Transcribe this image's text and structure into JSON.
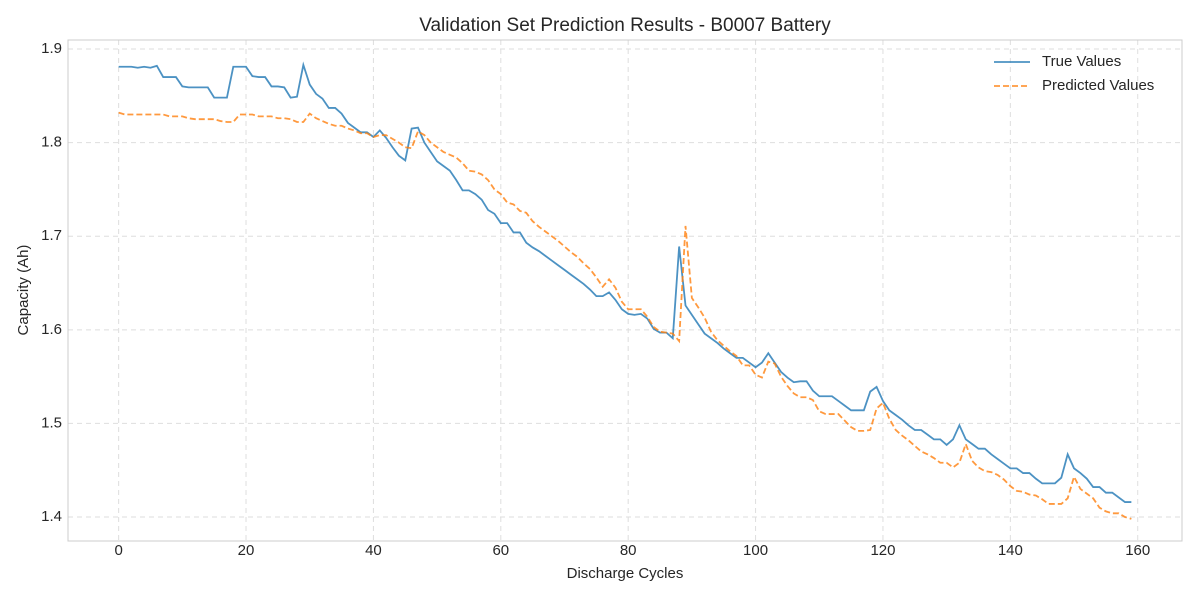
{
  "chart_data": {
    "type": "line",
    "title": "Validation Set Prediction Results - B0007 Battery",
    "x_label": "Discharge Cycles",
    "y_label": "Capacity (Ah)",
    "x": [
      0,
      1,
      2,
      3,
      4,
      5,
      6,
      7,
      8,
      9,
      10,
      11,
      12,
      13,
      14,
      15,
      16,
      17,
      18,
      19,
      20,
      21,
      22,
      23,
      24,
      25,
      26,
      27,
      28,
      29,
      30,
      31,
      32,
      33,
      34,
      35,
      36,
      37,
      38,
      39,
      40,
      41,
      42,
      43,
      44,
      45,
      46,
      47,
      48,
      49,
      50,
      51,
      52,
      53,
      54,
      55,
      56,
      57,
      58,
      59,
      60,
      61,
      62,
      63,
      64,
      65,
      66,
      67,
      68,
      69,
      70,
      71,
      72,
      73,
      74,
      75,
      76,
      77,
      78,
      79,
      80,
      81,
      82,
      83,
      84,
      85,
      86,
      87,
      88,
      89,
      90,
      91,
      92,
      93,
      94,
      95,
      96,
      97,
      98,
      99,
      100,
      101,
      102,
      103,
      104,
      105,
      106,
      107,
      108,
      109,
      110,
      111,
      112,
      113,
      114,
      115,
      116,
      117,
      118,
      119,
      120,
      121,
      122,
      123,
      124,
      125,
      126,
      127,
      128,
      129,
      130,
      131,
      132,
      133,
      134,
      135,
      136,
      137,
      138,
      139,
      140,
      141,
      142,
      143,
      144,
      145,
      146,
      147,
      148,
      149,
      150,
      151,
      152,
      153,
      154,
      155,
      156,
      157,
      158,
      159
    ],
    "series": [
      {
        "name": "True Values",
        "color": "#1f77b4",
        "linestyle": "solid",
        "values": [
          1.881,
          1.881,
          1.881,
          1.88,
          1.881,
          1.88,
          1.882,
          1.87,
          1.87,
          1.87,
          1.86,
          1.859,
          1.859,
          1.859,
          1.859,
          1.848,
          1.848,
          1.848,
          1.881,
          1.881,
          1.881,
          1.871,
          1.87,
          1.87,
          1.86,
          1.86,
          1.859,
          1.848,
          1.849,
          1.883,
          1.862,
          1.852,
          1.847,
          1.837,
          1.837,
          1.831,
          1.821,
          1.816,
          1.811,
          1.811,
          1.806,
          1.813,
          1.805,
          1.795,
          1.786,
          1.781,
          1.815,
          1.816,
          1.8,
          1.79,
          1.78,
          1.775,
          1.77,
          1.76,
          1.749,
          1.749,
          1.745,
          1.739,
          1.728,
          1.724,
          1.714,
          1.714,
          1.704,
          1.704,
          1.693,
          1.688,
          1.684,
          1.679,
          1.674,
          1.669,
          1.664,
          1.659,
          1.654,
          1.649,
          1.643,
          1.636,
          1.636,
          1.64,
          1.632,
          1.622,
          1.617,
          1.616,
          1.617,
          1.612,
          1.601,
          1.597,
          1.597,
          1.591,
          1.689,
          1.626,
          1.616,
          1.606,
          1.596,
          1.591,
          1.586,
          1.58,
          1.575,
          1.57,
          1.57,
          1.565,
          1.56,
          1.565,
          1.575,
          1.565,
          1.555,
          1.549,
          1.544,
          1.545,
          1.545,
          1.535,
          1.529,
          1.529,
          1.529,
          1.524,
          1.519,
          1.514,
          1.514,
          1.514,
          1.534,
          1.539,
          1.524,
          1.514,
          1.509,
          1.504,
          1.498,
          1.493,
          1.493,
          1.488,
          1.483,
          1.483,
          1.477,
          1.483,
          1.498,
          1.483,
          1.478,
          1.473,
          1.473,
          1.467,
          1.462,
          1.457,
          1.452,
          1.452,
          1.447,
          1.447,
          1.441,
          1.436,
          1.436,
          1.436,
          1.442,
          1.467,
          1.452,
          1.447,
          1.441,
          1.432,
          1.432,
          1.426,
          1.426,
          1.421,
          1.416,
          1.416
        ]
      },
      {
        "name": "Predicted Values",
        "color": "#ff7f0e",
        "linestyle": "dashed",
        "values": [
          1.832,
          1.83,
          1.83,
          1.83,
          1.83,
          1.83,
          1.83,
          1.83,
          1.828,
          1.828,
          1.828,
          1.826,
          1.825,
          1.825,
          1.825,
          1.825,
          1.823,
          1.822,
          1.822,
          1.83,
          1.83,
          1.83,
          1.828,
          1.828,
          1.828,
          1.826,
          1.826,
          1.825,
          1.822,
          1.822,
          1.831,
          1.826,
          1.823,
          1.82,
          1.818,
          1.818,
          1.815,
          1.813,
          1.81,
          1.81,
          1.806,
          1.808,
          1.808,
          1.804,
          1.8,
          1.795,
          1.794,
          1.812,
          1.808,
          1.8,
          1.795,
          1.79,
          1.787,
          1.784,
          1.778,
          1.77,
          1.769,
          1.766,
          1.76,
          1.75,
          1.745,
          1.736,
          1.734,
          1.727,
          1.725,
          1.716,
          1.71,
          1.705,
          1.7,
          1.695,
          1.689,
          1.683,
          1.678,
          1.671,
          1.665,
          1.656,
          1.646,
          1.654,
          1.645,
          1.63,
          1.622,
          1.622,
          1.622,
          1.614,
          1.603,
          1.598,
          1.597,
          1.596,
          1.588,
          1.711,
          1.634,
          1.624,
          1.613,
          1.598,
          1.589,
          1.583,
          1.577,
          1.572,
          1.562,
          1.562,
          1.552,
          1.549,
          1.566,
          1.564,
          1.55,
          1.54,
          1.532,
          1.528,
          1.528,
          1.525,
          1.513,
          1.51,
          1.51,
          1.51,
          1.503,
          1.496,
          1.492,
          1.492,
          1.493,
          1.516,
          1.522,
          1.505,
          1.493,
          1.487,
          1.482,
          1.476,
          1.47,
          1.467,
          1.463,
          1.458,
          1.458,
          1.453,
          1.458,
          1.478,
          1.46,
          1.453,
          1.449,
          1.448,
          1.445,
          1.44,
          1.433,
          1.428,
          1.427,
          1.424,
          1.423,
          1.419,
          1.414,
          1.414,
          1.414,
          1.42,
          1.443,
          1.43,
          1.425,
          1.42,
          1.41,
          1.406,
          1.404,
          1.404,
          1.4,
          1.398
        ]
      }
    ],
    "xlim": [
      -7.95,
      166.95
    ],
    "ylim": [
      1.3744,
      1.9096
    ],
    "xticks": [
      0,
      20,
      40,
      60,
      80,
      100,
      120,
      140,
      160
    ],
    "yticks": [
      1.4,
      1.5,
      1.6,
      1.7,
      1.8,
      1.9
    ],
    "grid": true,
    "legend": "upper-right"
  }
}
